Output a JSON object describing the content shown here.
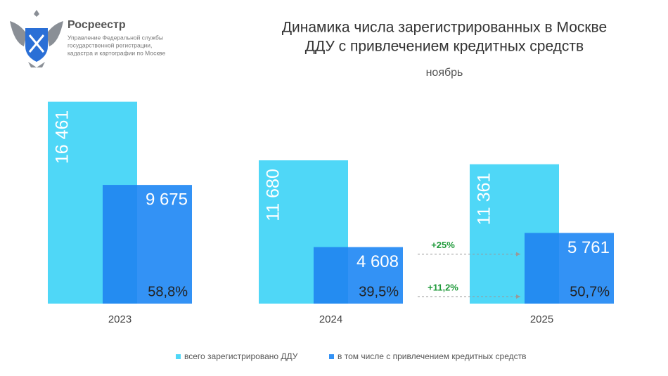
{
  "header": {
    "org": "Росреестр",
    "org_lines": [
      "Управление Федеральной службы",
      "государственной регистрации,",
      "кадастра и картографии по Москве"
    ]
  },
  "chart_data": {
    "type": "bar",
    "title": [
      "Динамика числа зарегистрированных в Москве",
      "ДДУ с привлечением кредитных средств"
    ],
    "subtitle": "ноябрь",
    "categories": [
      "2023",
      "2024",
      "2025"
    ],
    "series": [
      {
        "name": "всего зарегистрировано ДДУ",
        "color": "#4fd7f7",
        "values": [
          16461,
          11680,
          11361
        ],
        "value_labels": [
          "16 461",
          "11 680",
          "11 361"
        ]
      },
      {
        "name": "в том числе с привлечением кредитных средств",
        "color": "#3392f5",
        "values": [
          9675,
          4608,
          5761
        ],
        "value_labels": [
          "9 675",
          "4 608",
          "5 761"
        ]
      }
    ],
    "shares": [
      58.8,
      39.5,
      50.7
    ],
    "share_labels": [
      "58,8%",
      "39,5%",
      "50,7%"
    ],
    "annotations": [
      "+25%",
      "+11,2%"
    ],
    "ylim": [
      0,
      16500
    ]
  }
}
